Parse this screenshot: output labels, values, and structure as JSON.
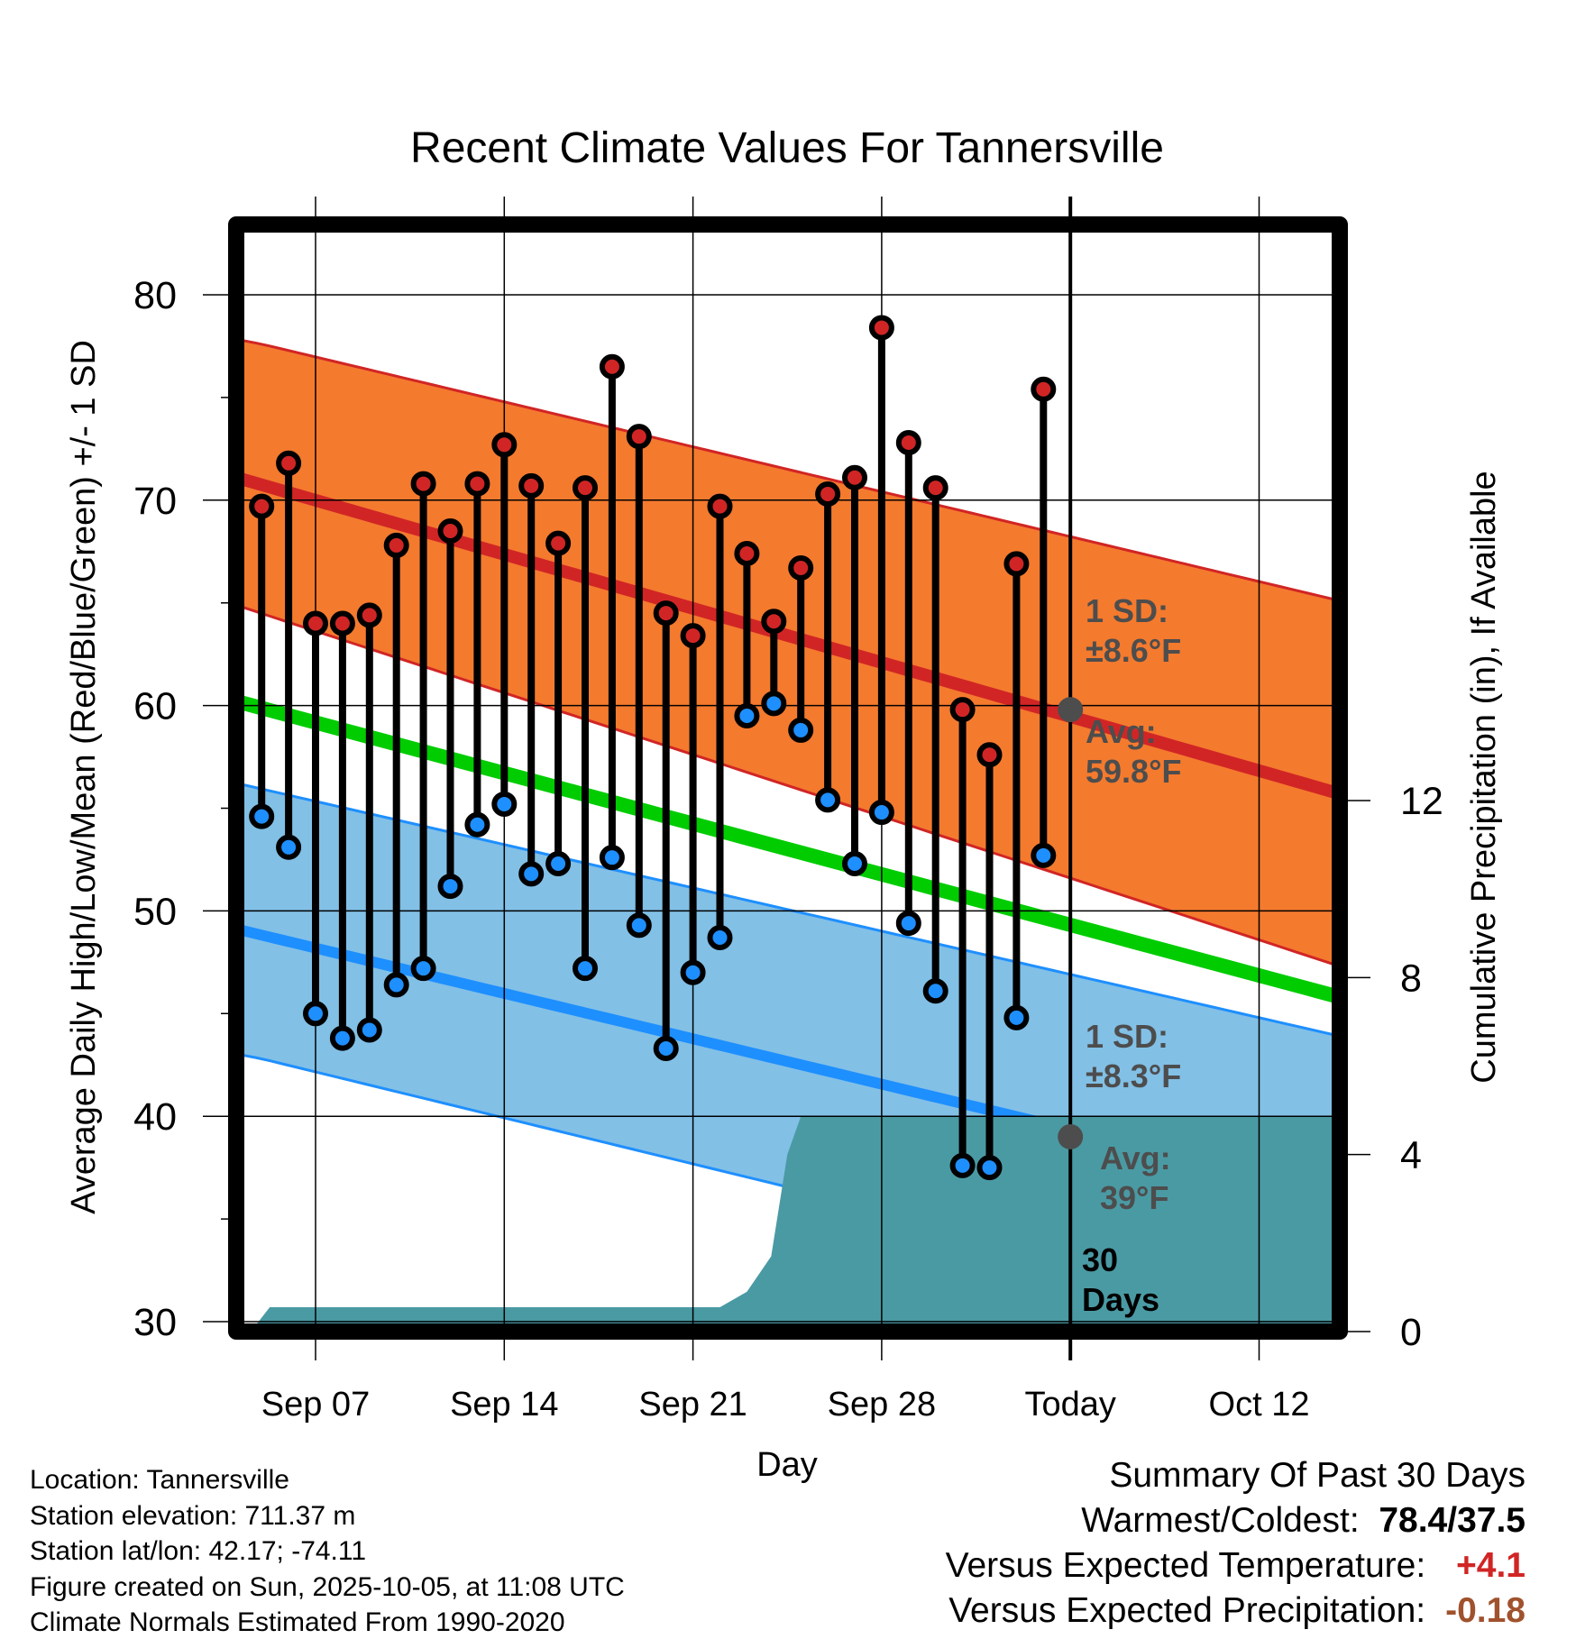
{
  "chart_data": {
    "type": "line",
    "title": "Recent Climate Values For Tannersville",
    "xlabel": "Day",
    "ylabel": "Average Daily High/Low/Mean (Red/Blue/Green) +/- 1 SD",
    "y2label": "Cumulative Precipitation (in), If Available",
    "ylim": [
      30,
      84
    ],
    "y2lim": [
      0,
      12.8
    ],
    "yticks": [
      "30",
      "40",
      "50",
      "60",
      "70",
      "80"
    ],
    "y2ticks": [
      "0",
      "4",
      "8",
      "12"
    ],
    "xticks": [
      {
        "label": "Sep 07",
        "day": 7
      },
      {
        "label": "Sep 14",
        "day": 14
      },
      {
        "label": "Sep 21",
        "day": 21
      },
      {
        "label": "Sep 28",
        "day": 28
      },
      {
        "label": "Today",
        "day": 35
      },
      {
        "label": "Oct 12",
        "day": 42
      }
    ],
    "x_day_note": "day = day of September (Oct 1 = 31)",
    "xlim": [
      3.8,
      45
    ],
    "grid": true,
    "days": [
      5,
      6,
      7,
      8,
      9,
      10,
      11,
      12,
      13,
      14,
      15,
      16,
      17,
      18,
      19,
      20,
      21,
      22,
      23,
      24,
      25,
      26,
      27,
      28,
      29,
      30,
      31,
      32,
      33,
      34
    ],
    "highs": [
      69.7,
      71.8,
      64.0,
      64.0,
      64.4,
      67.8,
      70.8,
      68.5,
      70.8,
      72.7,
      70.7,
      67.9,
      70.6,
      76.5,
      73.1,
      64.5,
      63.4,
      69.7,
      67.4,
      64.1,
      66.7,
      70.3,
      71.1,
      78.4,
      72.8,
      70.6,
      59.8,
      57.6,
      66.9,
      75.4
    ],
    "lows": [
      54.6,
      53.1,
      45.0,
      43.8,
      44.2,
      46.4,
      47.2,
      51.2,
      54.2,
      55.2,
      51.8,
      52.3,
      47.2,
      52.6,
      49.3,
      43.3,
      47.0,
      48.7,
      59.5,
      60.1,
      58.8,
      55.4,
      52.3,
      54.8,
      49.4,
      46.1,
      37.6,
      37.5,
      44.8,
      52.7
    ],
    "normals": {
      "high_avg": [
        [
          3.8,
          71.2
        ],
        [
          45,
          55.7
        ]
      ],
      "high_sd_upper": [
        [
          3.8,
          77.9
        ],
        [
          5,
          77.6
        ],
        [
          45,
          65.1
        ]
      ],
      "high_sd_lower": [
        [
          3.8,
          65.0
        ],
        [
          45,
          47.3
        ]
      ],
      "mean_avg": [
        [
          3.8,
          60.3
        ],
        [
          45,
          45.8
        ]
      ],
      "low_avg": [
        [
          3.8,
          49.2
        ],
        [
          45,
          36.2
        ]
      ],
      "low_sd_upper": [
        [
          3.8,
          56.3
        ],
        [
          45,
          43.9
        ]
      ],
      "low_sd_lower": [
        [
          3.8,
          43.1
        ],
        [
          5,
          42.8
        ],
        [
          45,
          30.0
        ]
      ]
    },
    "precip_cumulative": [
      [
        4.6,
        0
      ],
      [
        5.3,
        0.55
      ],
      [
        22,
        0.55
      ],
      [
        23,
        0.9
      ],
      [
        23.9,
        1.7
      ],
      [
        24.5,
        4.0
      ],
      [
        25,
        4.86
      ],
      [
        45,
        4.86
      ]
    ],
    "today_markers": {
      "high_avg": 59.8,
      "low_avg": 39
    },
    "annotations": {
      "high_sd": [
        "1 SD:",
        "±8.6°F"
      ],
      "high_avg": [
        "Avg:",
        "59.8°F"
      ],
      "low_sd": [
        "1 SD:",
        "±8.3°F"
      ],
      "low_avg": [
        "Avg:",
        "39°F"
      ],
      "period": [
        "30",
        "Days"
      ]
    },
    "colors": {
      "high_band": "#f47a2e",
      "high_line": "#d12525",
      "mean_line": "#00cc00",
      "low_band": "#82c0e6",
      "low_line": "#1e8fff",
      "precip": "#4a9aa4",
      "annotation": "#4d4d4d"
    }
  },
  "footer": {
    "location": "Location: Tannersville",
    "elevation": "Station elevation: 711.37 m",
    "latlon": "Station lat/lon: 42.17; -74.11",
    "created": "Figure created on Sun, 2025-10-05, at 11:08 UTC",
    "normals": "Climate Normals Estimated From 1990-2020"
  },
  "summary": {
    "title": "Summary Of Past 30 Days",
    "warmest_label": "Warmest/Coldest:",
    "warmest_value": "78.4/37.5",
    "temp_label": "Versus Expected Temperature:",
    "temp_value": "+4.1",
    "temp_color": "#d12525",
    "precip_label": "Versus Expected Precipitation:",
    "precip_value": "-0.18",
    "precip_color": "#a0522d"
  }
}
